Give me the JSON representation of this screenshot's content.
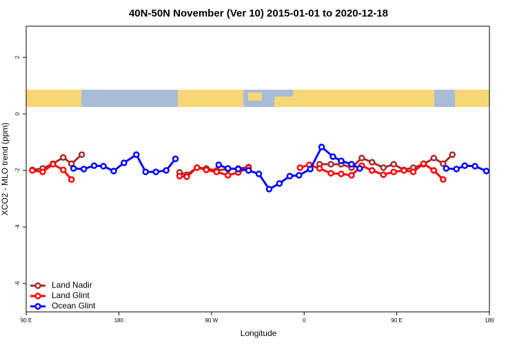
{
  "chart_data": {
    "type": "line",
    "title": "40N-50N November (Ver 10)   2015-01-01 to 2020-12-18",
    "x_label": "Longitude",
    "y_label": "XCO2 - MLO trend (ppm)",
    "xlim": [
      90,
      540
    ],
    "xticks": [
      {
        "value": 90,
        "label": "90 E"
      },
      {
        "value": 180,
        "label": "180"
      },
      {
        "value": 270,
        "label": "90 W"
      },
      {
        "value": 360,
        "label": "0"
      },
      {
        "value": 450,
        "label": "90 E"
      },
      {
        "value": 540,
        "label": "180"
      }
    ],
    "ylim": [
      -7,
      3.1
    ],
    "yticks": [
      -6,
      -4,
      -2,
      0,
      2
    ],
    "legend": "bottomleft",
    "series": [
      {
        "name": "Land Nadir",
        "color": "#a52a2a",
        "x": [
          96,
          106,
          116,
          126,
          134,
          144,
          null,
          239,
          246,
          256,
          265,
          275,
          286,
          296,
          306,
          null,
          375,
          386,
          396,
          406,
          416,
          426,
          437,
          447,
          457,
          466,
          476,
          486,
          495,
          504
        ],
        "values": [
          -1.98,
          -1.93,
          -1.76,
          -1.54,
          -1.76,
          -1.44,
          null,
          -2.07,
          -2.15,
          -1.9,
          -1.93,
          -2.0,
          -1.95,
          -1.93,
          -1.88,
          null,
          -1.78,
          -1.78,
          -1.78,
          -1.9,
          -1.56,
          -1.71,
          -1.9,
          -1.78,
          -1.98,
          -1.9,
          -1.78,
          -1.56,
          -1.76,
          -1.44
        ]
      },
      {
        "name": "Land Glint",
        "color": "#ff0000",
        "x": [
          96,
          106,
          116,
          126,
          134,
          null,
          239,
          246,
          256,
          265,
          275,
          286,
          296,
          306,
          null,
          356,
          365,
          375,
          386,
          396,
          406,
          416,
          426,
          437,
          447,
          457,
          466,
          476,
          486,
          495
        ],
        "values": [
          -2.0,
          -2.05,
          -1.78,
          -1.98,
          -2.32,
          null,
          -2.2,
          -2.22,
          -1.9,
          -1.98,
          -2.05,
          -2.17,
          -2.07,
          -1.9,
          null,
          -1.9,
          -1.8,
          -1.93,
          -2.1,
          -2.12,
          -2.17,
          -1.83,
          -2.0,
          -2.15,
          -2.05,
          -2.0,
          -2.05,
          -1.76,
          -2.0,
          -2.32
        ]
      },
      {
        "name": "Ocean Glint",
        "color": "#0000ff",
        "x": [
          136,
          146,
          156,
          165,
          175,
          185,
          197,
          206,
          216,
          226,
          235,
          null,
          277,
          286,
          296,
          306,
          316,
          326,
          336,
          346,
          355,
          366,
          377,
          388,
          396,
          406,
          414,
          null,
          498,
          508,
          516,
          526,
          537
        ],
        "values": [
          -1.93,
          -1.95,
          -1.83,
          -1.85,
          -2.02,
          -1.73,
          -1.44,
          -2.05,
          -2.05,
          -2.0,
          -1.59,
          null,
          -1.8,
          -1.93,
          -1.95,
          -2.0,
          -2.12,
          -2.66,
          -2.46,
          -2.2,
          -2.17,
          -1.95,
          -1.17,
          -1.51,
          -1.66,
          -1.78,
          -1.93,
          null,
          -1.93,
          -1.95,
          -1.83,
          -1.85,
          -2.02
        ]
      }
    ]
  }
}
